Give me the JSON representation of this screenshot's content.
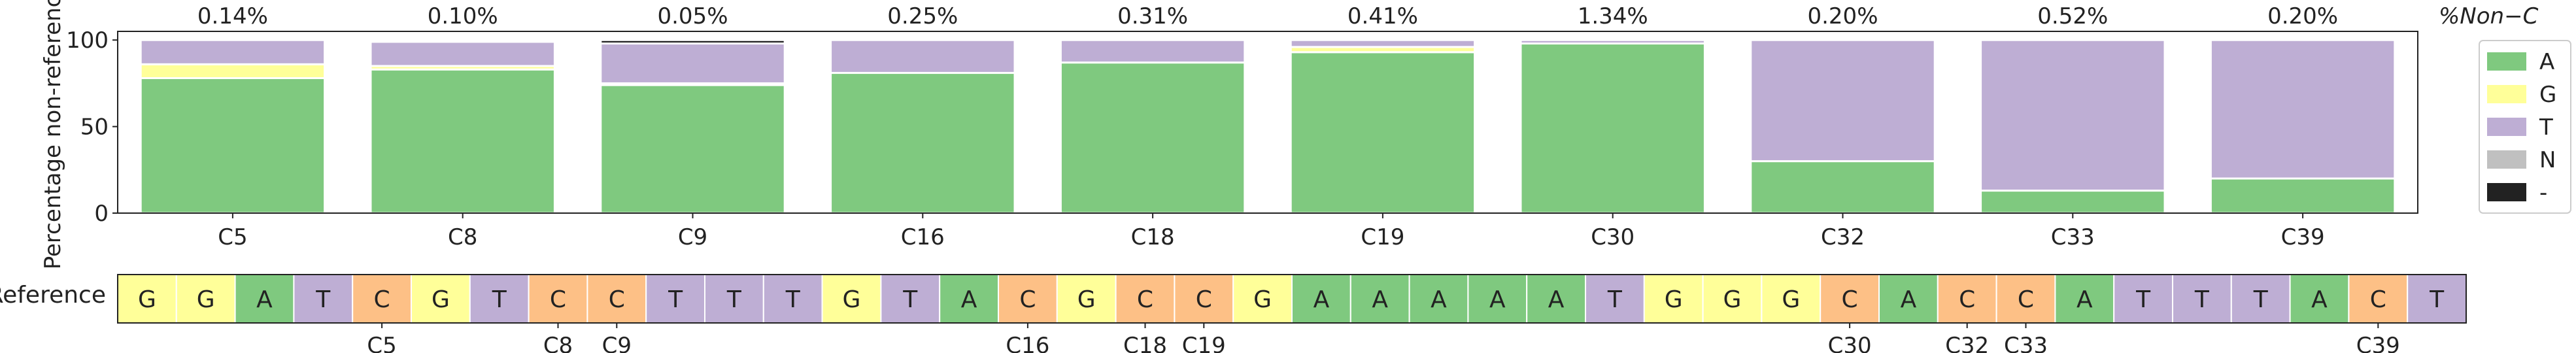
{
  "chart_data": {
    "type": "bar",
    "stacked": true,
    "ylabel": "Percentage non-reference",
    "ylim": [
      0,
      105
    ],
    "yticks": [
      0,
      50,
      100
    ],
    "grid": false,
    "legend_position": "right",
    "top_axis_label": "%Non−C",
    "categories": [
      "C5",
      "C8",
      "C9",
      "C16",
      "C18",
      "C19",
      "C30",
      "C32",
      "C33",
      "C39"
    ],
    "top_labels": [
      "0.14%",
      "0.10%",
      "0.05%",
      "0.25%",
      "0.31%",
      "0.41%",
      "1.34%",
      "0.20%",
      "0.52%",
      "0.20%"
    ],
    "colors": {
      "A": "#7fc97f",
      "G": "#ffff99",
      "T": "#beaed4",
      "N": "#c0c0c0",
      "-": "#222222",
      "C": "#fdc086"
    },
    "series": [
      {
        "name": "A",
        "values": [
          78,
          83,
          74,
          81,
          87,
          93,
          98,
          30,
          13,
          20
        ]
      },
      {
        "name": "G",
        "values": [
          8,
          2,
          1,
          0,
          0,
          3,
          0,
          0,
          0,
          0
        ]
      },
      {
        "name": "T",
        "values": [
          14,
          14,
          23,
          19,
          13,
          4,
          2,
          70,
          87,
          80
        ]
      },
      {
        "name": "N",
        "values": [
          0,
          1,
          0,
          0,
          0,
          0,
          0,
          0,
          0,
          0
        ]
      },
      {
        "name": "-",
        "values": [
          0,
          0,
          2,
          0,
          0,
          0,
          0,
          0,
          0,
          0
        ]
      }
    ]
  },
  "reference": {
    "label": "Reference",
    "sequence": [
      "G",
      "G",
      "A",
      "T",
      "C",
      "G",
      "T",
      "C",
      "C",
      "T",
      "T",
      "T",
      "G",
      "T",
      "A",
      "C",
      "G",
      "C",
      "C",
      "G",
      "A",
      "A",
      "A",
      "A",
      "A",
      "T",
      "G",
      "G",
      "G",
      "C",
      "A",
      "C",
      "C",
      "A",
      "T",
      "T",
      "T",
      "A",
      "C",
      "T"
    ],
    "position_labels": [
      {
        "index": 4,
        "label": "C5"
      },
      {
        "index": 7,
        "label": "C8"
      },
      {
        "index": 8,
        "label": "C9"
      },
      {
        "index": 15,
        "label": "C16"
      },
      {
        "index": 17,
        "label": "C18"
      },
      {
        "index": 18,
        "label": "C19"
      },
      {
        "index": 29,
        "label": "C30"
      },
      {
        "index": 31,
        "label": "C32"
      },
      {
        "index": 32,
        "label": "C33"
      },
      {
        "index": 38,
        "label": "C39"
      }
    ]
  }
}
